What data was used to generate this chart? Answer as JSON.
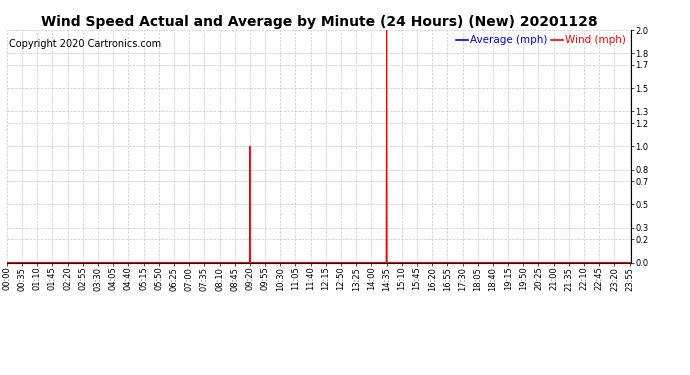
{
  "title": "Wind Speed Actual and Average by Minute (24 Hours) (New) 20201128",
  "copyright": "Copyright 2020 Cartronics.com",
  "legend_avg_label": "Average (mph)",
  "legend_wind_label": "Wind (mph)",
  "avg_color": "blue",
  "wind_color": "red",
  "background_color": "#ffffff",
  "grid_color": "#c8c8c8",
  "ylim": [
    0.0,
    2.0
  ],
  "yticks": [
    0.0,
    0.2,
    0.3,
    0.5,
    0.7,
    0.8,
    1.0,
    1.2,
    1.3,
    1.5,
    1.7,
    1.8,
    2.0
  ],
  "total_minutes": 1440,
  "wind_spikes": [
    {
      "minute": 560,
      "value": 1.0
    },
    {
      "minute": 875,
      "value": 2.0
    }
  ],
  "title_fontsize": 10,
  "copyright_fontsize": 7,
  "tick_fontsize": 6,
  "legend_fontsize": 7.5,
  "xtick_step": 35
}
